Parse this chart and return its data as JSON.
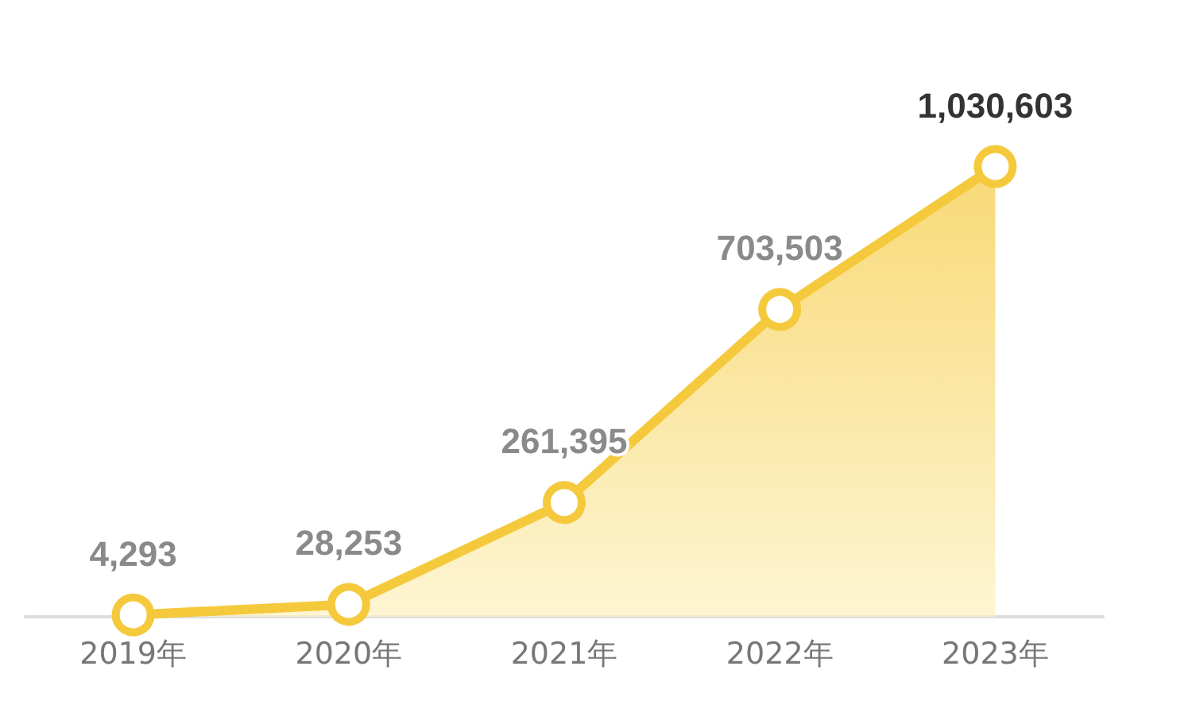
{
  "chart_data": {
    "type": "area",
    "categories": [
      "2019年",
      "2020年",
      "2021年",
      "2022年",
      "2023年"
    ],
    "series": [
      {
        "color": "#f5c93c",
        "values": [
          4293,
          28253,
          261395,
          703503,
          1030603
        ],
        "value_labels": [
          "4,293",
          "28,253",
          "261,395",
          "703,503",
          "1,030,603"
        ]
      }
    ],
    "marker": "circle"
  }
}
